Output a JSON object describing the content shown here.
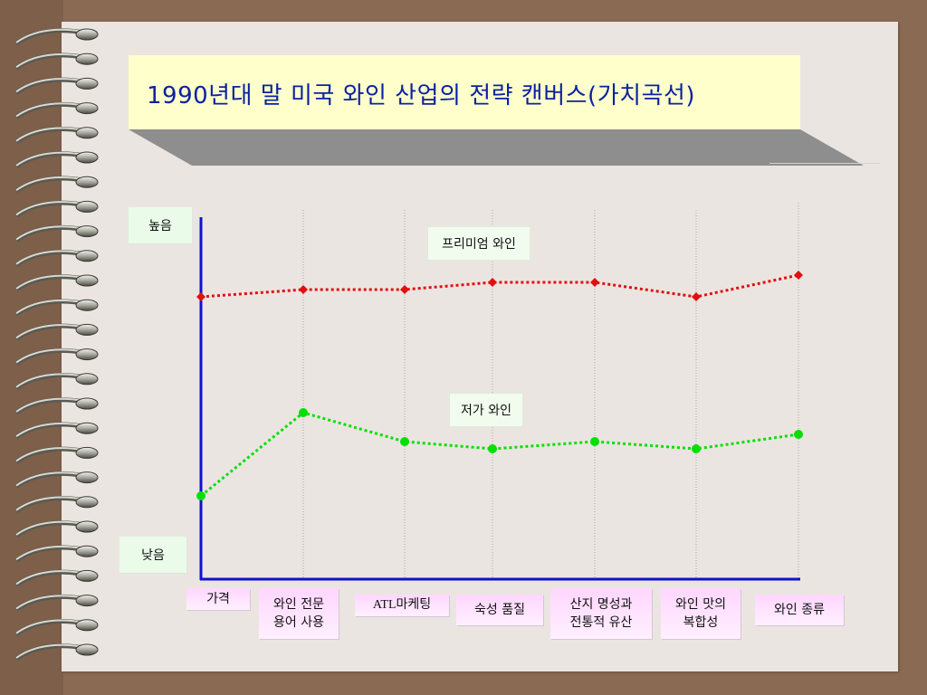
{
  "slide": {
    "title": "1990년대 말 미국 와인 산업의 전략 캔버스(가치곡선)"
  },
  "chart_data": {
    "type": "line",
    "categories": [
      "가격",
      "와인 전문\n용어 사용",
      "ATL마케팅",
      "숙성 품질",
      "산지 명성과\n전통적 유산",
      "와인 맛의\n복합성",
      "와인 종류"
    ],
    "y_axis_labels": {
      "high": "높음",
      "low": "낮음"
    },
    "ylim": [
      0,
      10
    ],
    "grid": "vertical-dotted",
    "series": [
      {
        "name": "프리미엄 와인",
        "color": "#e01010",
        "marker": "diamond",
        "values": [
          7.8,
          8.0,
          8.0,
          8.2,
          8.2,
          7.8,
          8.4
        ]
      },
      {
        "name": "저가 와인",
        "color": "#00e000",
        "marker": "circle",
        "values": [
          2.3,
          4.6,
          3.8,
          3.6,
          3.8,
          3.6,
          4.0
        ]
      }
    ]
  }
}
